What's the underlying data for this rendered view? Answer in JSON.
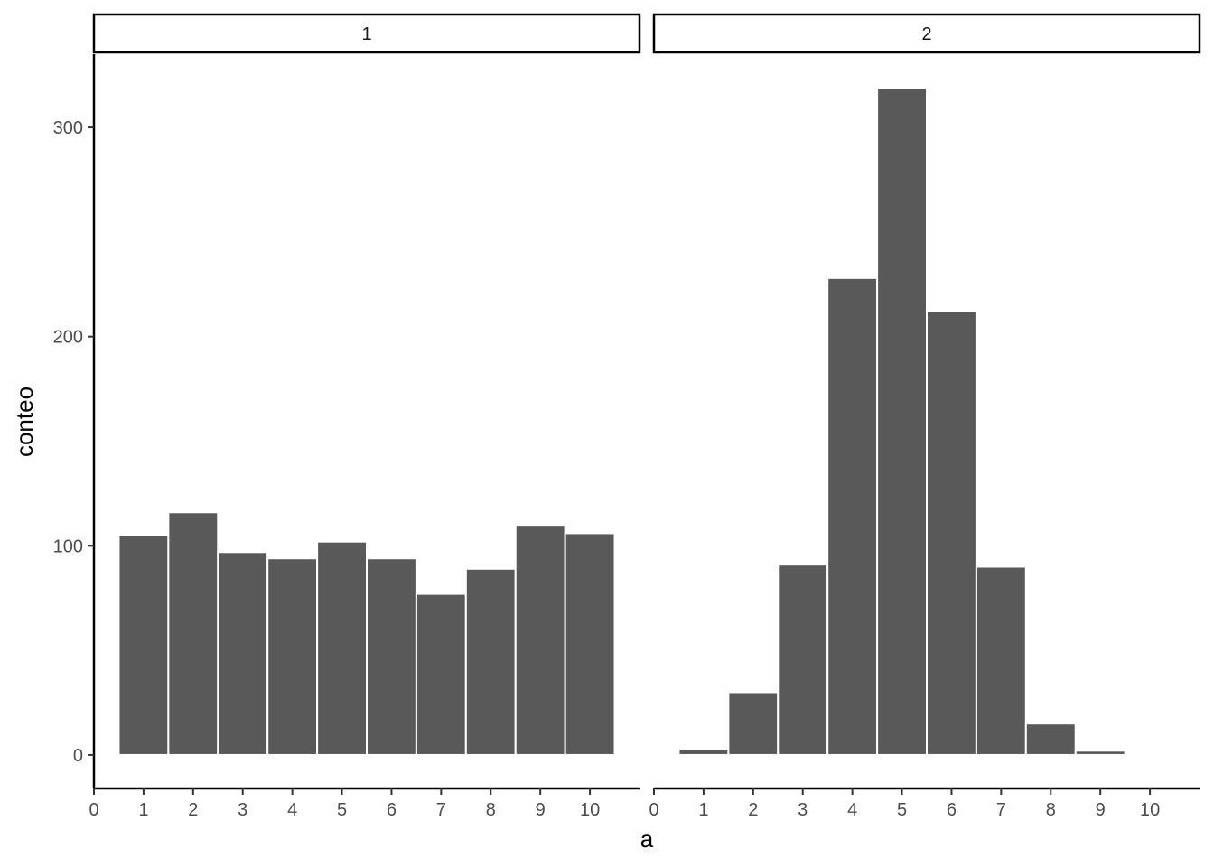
{
  "chart_data": {
    "type": "bar",
    "xlabel": "a",
    "ylabel": "conteo",
    "ylim": [
      -16,
      335
    ],
    "yticks": [
      0,
      100,
      200,
      300
    ],
    "xlim": [
      0,
      11
    ],
    "xticks": [
      0,
      1,
      2,
      3,
      4,
      5,
      6,
      7,
      8,
      9,
      10
    ],
    "bar_color": "#595959",
    "bar_outline": "#ffffff",
    "grid": false,
    "facets": [
      {
        "label": "1",
        "x": [
          1,
          2,
          3,
          4,
          5,
          6,
          7,
          8,
          9,
          10
        ],
        "values": [
          105,
          116,
          97,
          94,
          102,
          94,
          77,
          89,
          110,
          106
        ]
      },
      {
        "label": "2",
        "x": [
          1,
          2,
          3,
          4,
          5,
          6,
          7,
          8,
          9
        ],
        "values": [
          3,
          30,
          91,
          228,
          319,
          212,
          90,
          15,
          2
        ]
      }
    ]
  }
}
